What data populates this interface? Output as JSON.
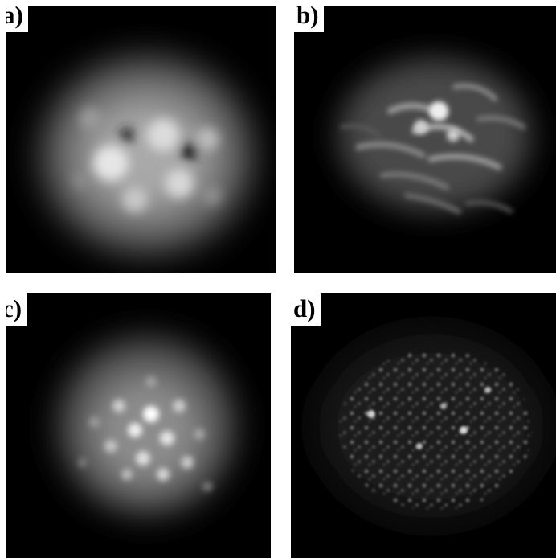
{
  "panels": [
    {
      "label": "a)",
      "image": "blurred-speckle-blob"
    },
    {
      "label": "b)",
      "image": "streaky-speckle-pattern"
    },
    {
      "label": "c)",
      "image": "speckle-cluster"
    },
    {
      "label": "d)",
      "image": "fine-grained-speckle-field"
    }
  ]
}
